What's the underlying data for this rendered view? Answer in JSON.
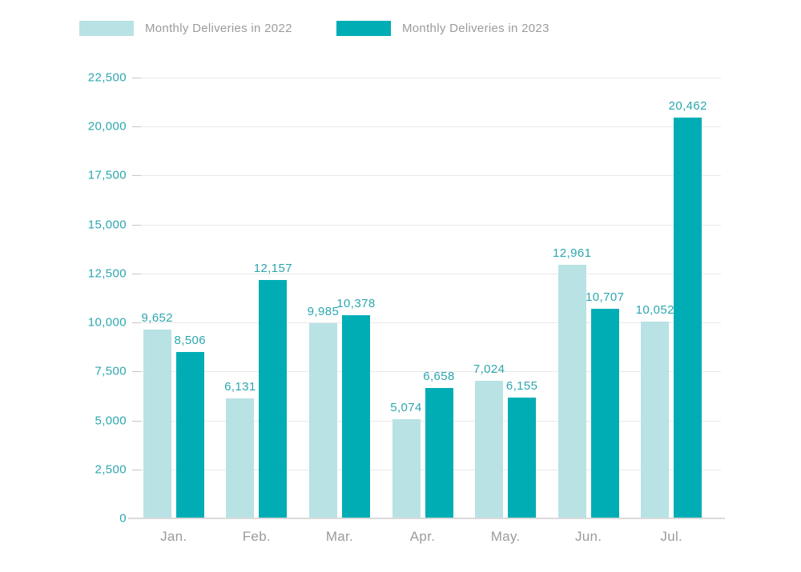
{
  "legend": [
    {
      "label": "Monthly Deliveries in 2022",
      "color": "#b9e2e5"
    },
    {
      "label": "Monthly Deliveries in 2023",
      "color": "#00adb5"
    }
  ],
  "chart_data": {
    "type": "bar",
    "categories": [
      "Jan.",
      "Feb.",
      "Mar.",
      "Apr.",
      "May.",
      "Jun.",
      "Jul."
    ],
    "series": [
      {
        "name": "Monthly Deliveries in 2022",
        "color": "#b9e2e5",
        "values": [
          9652,
          6131,
          9985,
          5074,
          7024,
          12961,
          10052
        ]
      },
      {
        "name": "Monthly Deliveries in 2023",
        "color": "#00adb5",
        "values": [
          8506,
          12157,
          10378,
          6658,
          6155,
          10707,
          20462
        ]
      }
    ],
    "title": "",
    "xlabel": "",
    "ylabel": "",
    "ylim": [
      0,
      22500
    ],
    "ytick_step": 2500,
    "grid": true,
    "legend_position": "top",
    "data_label_color": "#2ba7af",
    "axis_label_color": "#2ba7af",
    "category_label_color": "#9b9b9b",
    "gridline_color": "#e8e8e8"
  }
}
